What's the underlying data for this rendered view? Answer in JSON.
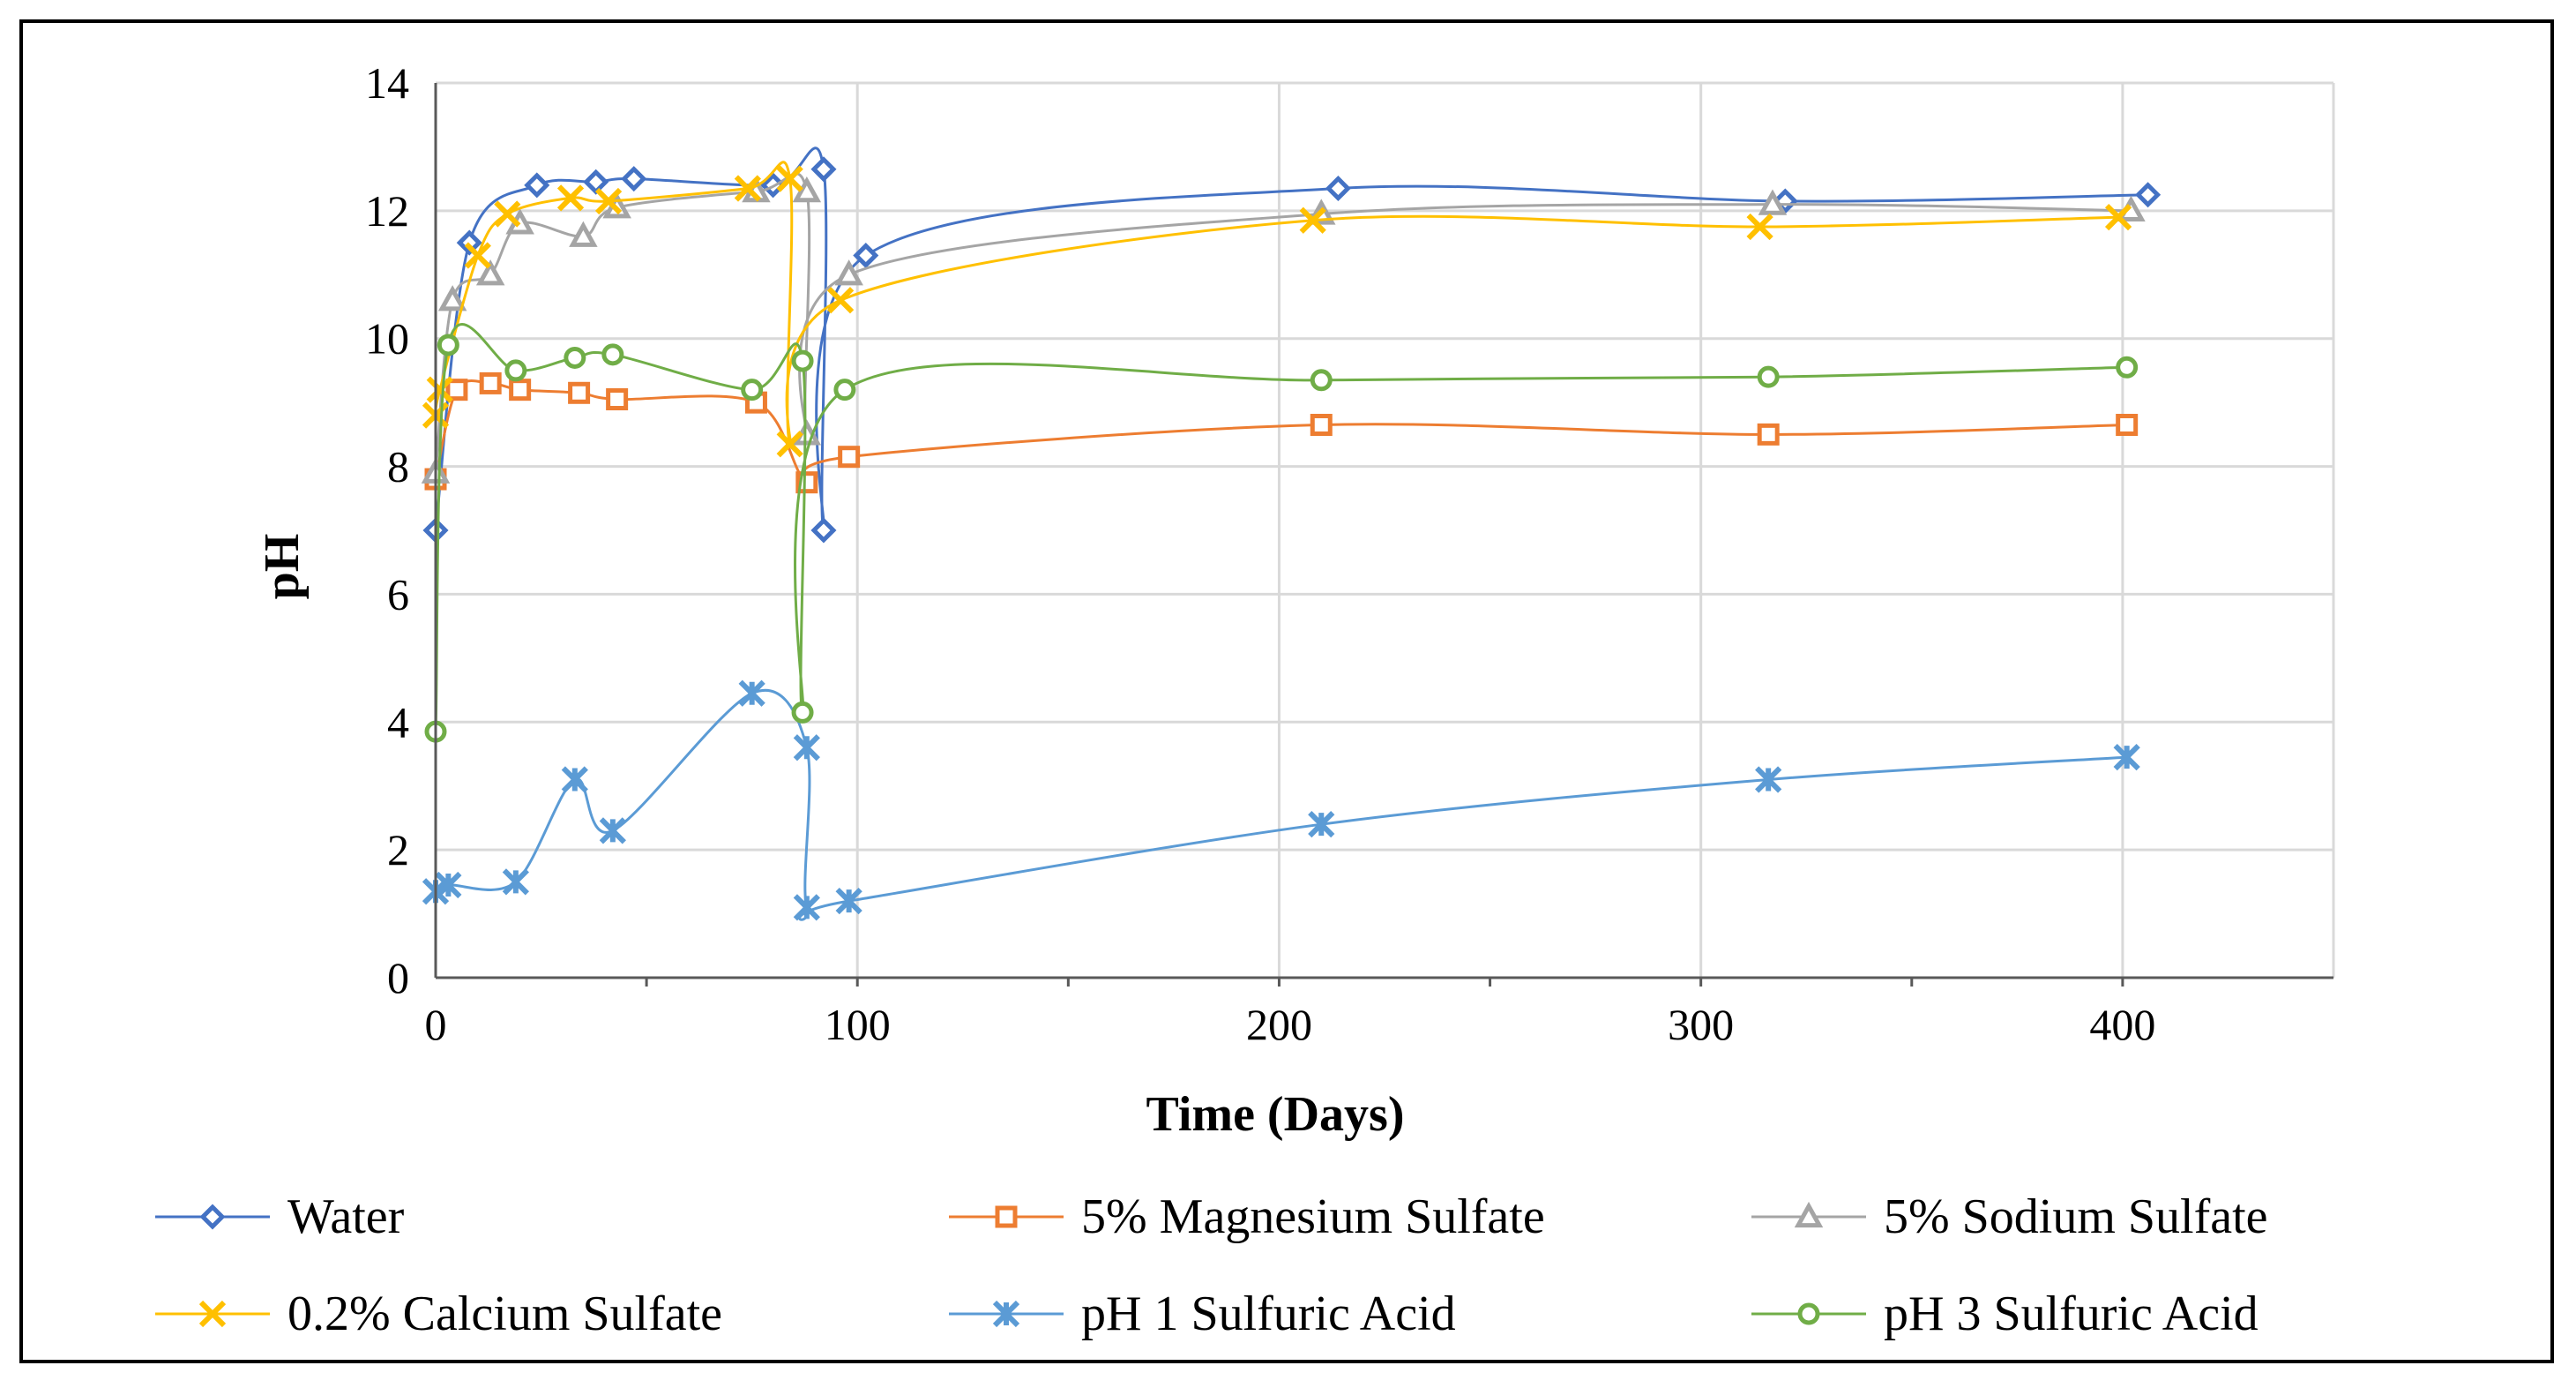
{
  "chart_data": {
    "type": "scatter",
    "title": "",
    "xlabel": "Time (Days)",
    "ylabel": "pH",
    "xlim": [
      0,
      450
    ],
    "ylim": [
      0,
      14
    ],
    "x_ticks": [
      0,
      100,
      200,
      300,
      400
    ],
    "y_ticks": [
      0,
      2,
      4,
      6,
      8,
      10,
      12,
      14
    ],
    "grid": true,
    "legend_position": "bottom",
    "series": [
      {
        "name": "Water",
        "color": "#4472C4",
        "marker": "diamond",
        "points": [
          [
            0,
            7.0
          ],
          [
            8,
            11.5
          ],
          [
            24,
            12.4
          ],
          [
            38,
            12.45
          ],
          [
            47,
            12.5
          ],
          [
            80,
            12.4
          ],
          [
            92,
            12.65
          ],
          [
            92,
            7.0
          ],
          [
            102,
            11.3
          ],
          [
            214,
            12.35
          ],
          [
            320,
            12.15
          ],
          [
            406,
            12.25
          ]
        ]
      },
      {
        "name": "5% Magnesium Sulfate",
        "color": "#ED7D31",
        "marker": "square",
        "points": [
          [
            0,
            7.8
          ],
          [
            5,
            9.2
          ],
          [
            13,
            9.3
          ],
          [
            20,
            9.2
          ],
          [
            34,
            9.15
          ],
          [
            43,
            9.05
          ],
          [
            76,
            9.0
          ],
          [
            88,
            7.75
          ],
          [
            98,
            8.15
          ],
          [
            210,
            8.65
          ],
          [
            316,
            8.5
          ],
          [
            401,
            8.65
          ]
        ]
      },
      {
        "name": "5% Sodium Sulfate",
        "color": "#A5A5A5",
        "marker": "triangle",
        "points": [
          [
            0,
            7.9
          ],
          [
            4,
            10.6
          ],
          [
            13,
            11.0
          ],
          [
            20,
            11.8
          ],
          [
            35,
            11.6
          ],
          [
            43,
            12.05
          ],
          [
            76,
            12.3
          ],
          [
            88,
            12.3
          ],
          [
            88,
            8.5
          ],
          [
            98,
            11.0
          ],
          [
            210,
            11.95
          ],
          [
            317,
            12.1
          ],
          [
            402,
            12.0
          ]
        ]
      },
      {
        "name": "0.2% Calcium Sulfate",
        "color": "#FFC000",
        "marker": "x",
        "points": [
          [
            0,
            8.8
          ],
          [
            1,
            9.2
          ],
          [
            10,
            11.3
          ],
          [
            17,
            11.95
          ],
          [
            32,
            12.2
          ],
          [
            41,
            12.15
          ],
          [
            74,
            12.35
          ],
          [
            84,
            12.5
          ],
          [
            84,
            8.35
          ],
          [
            96,
            10.6
          ],
          [
            208,
            11.85
          ],
          [
            314,
            11.75
          ],
          [
            399,
            11.9
          ]
        ]
      },
      {
        "name": "pH 1 Sulfuric Acid",
        "color": "#5B9BD5",
        "marker": "star",
        "points": [
          [
            0,
            1.35
          ],
          [
            3,
            1.45
          ],
          [
            19,
            1.5
          ],
          [
            33,
            3.1
          ],
          [
            42,
            2.3
          ],
          [
            75,
            4.45
          ],
          [
            88,
            3.6
          ],
          [
            88,
            1.1
          ],
          [
            98,
            1.2
          ],
          [
            210,
            2.4
          ],
          [
            316,
            3.1
          ],
          [
            401,
            3.45
          ]
        ]
      },
      {
        "name": "pH 3 Sulfuric Acid",
        "color": "#70AD47",
        "marker": "circle",
        "points": [
          [
            0,
            3.85
          ],
          [
            3,
            9.9
          ],
          [
            19,
            9.5
          ],
          [
            33,
            9.7
          ],
          [
            42,
            9.75
          ],
          [
            75,
            9.2
          ],
          [
            87,
            9.65
          ],
          [
            87,
            4.15
          ],
          [
            97,
            9.2
          ],
          [
            210,
            9.35
          ],
          [
            316,
            9.4
          ],
          [
            401,
            9.55
          ]
        ]
      }
    ]
  }
}
